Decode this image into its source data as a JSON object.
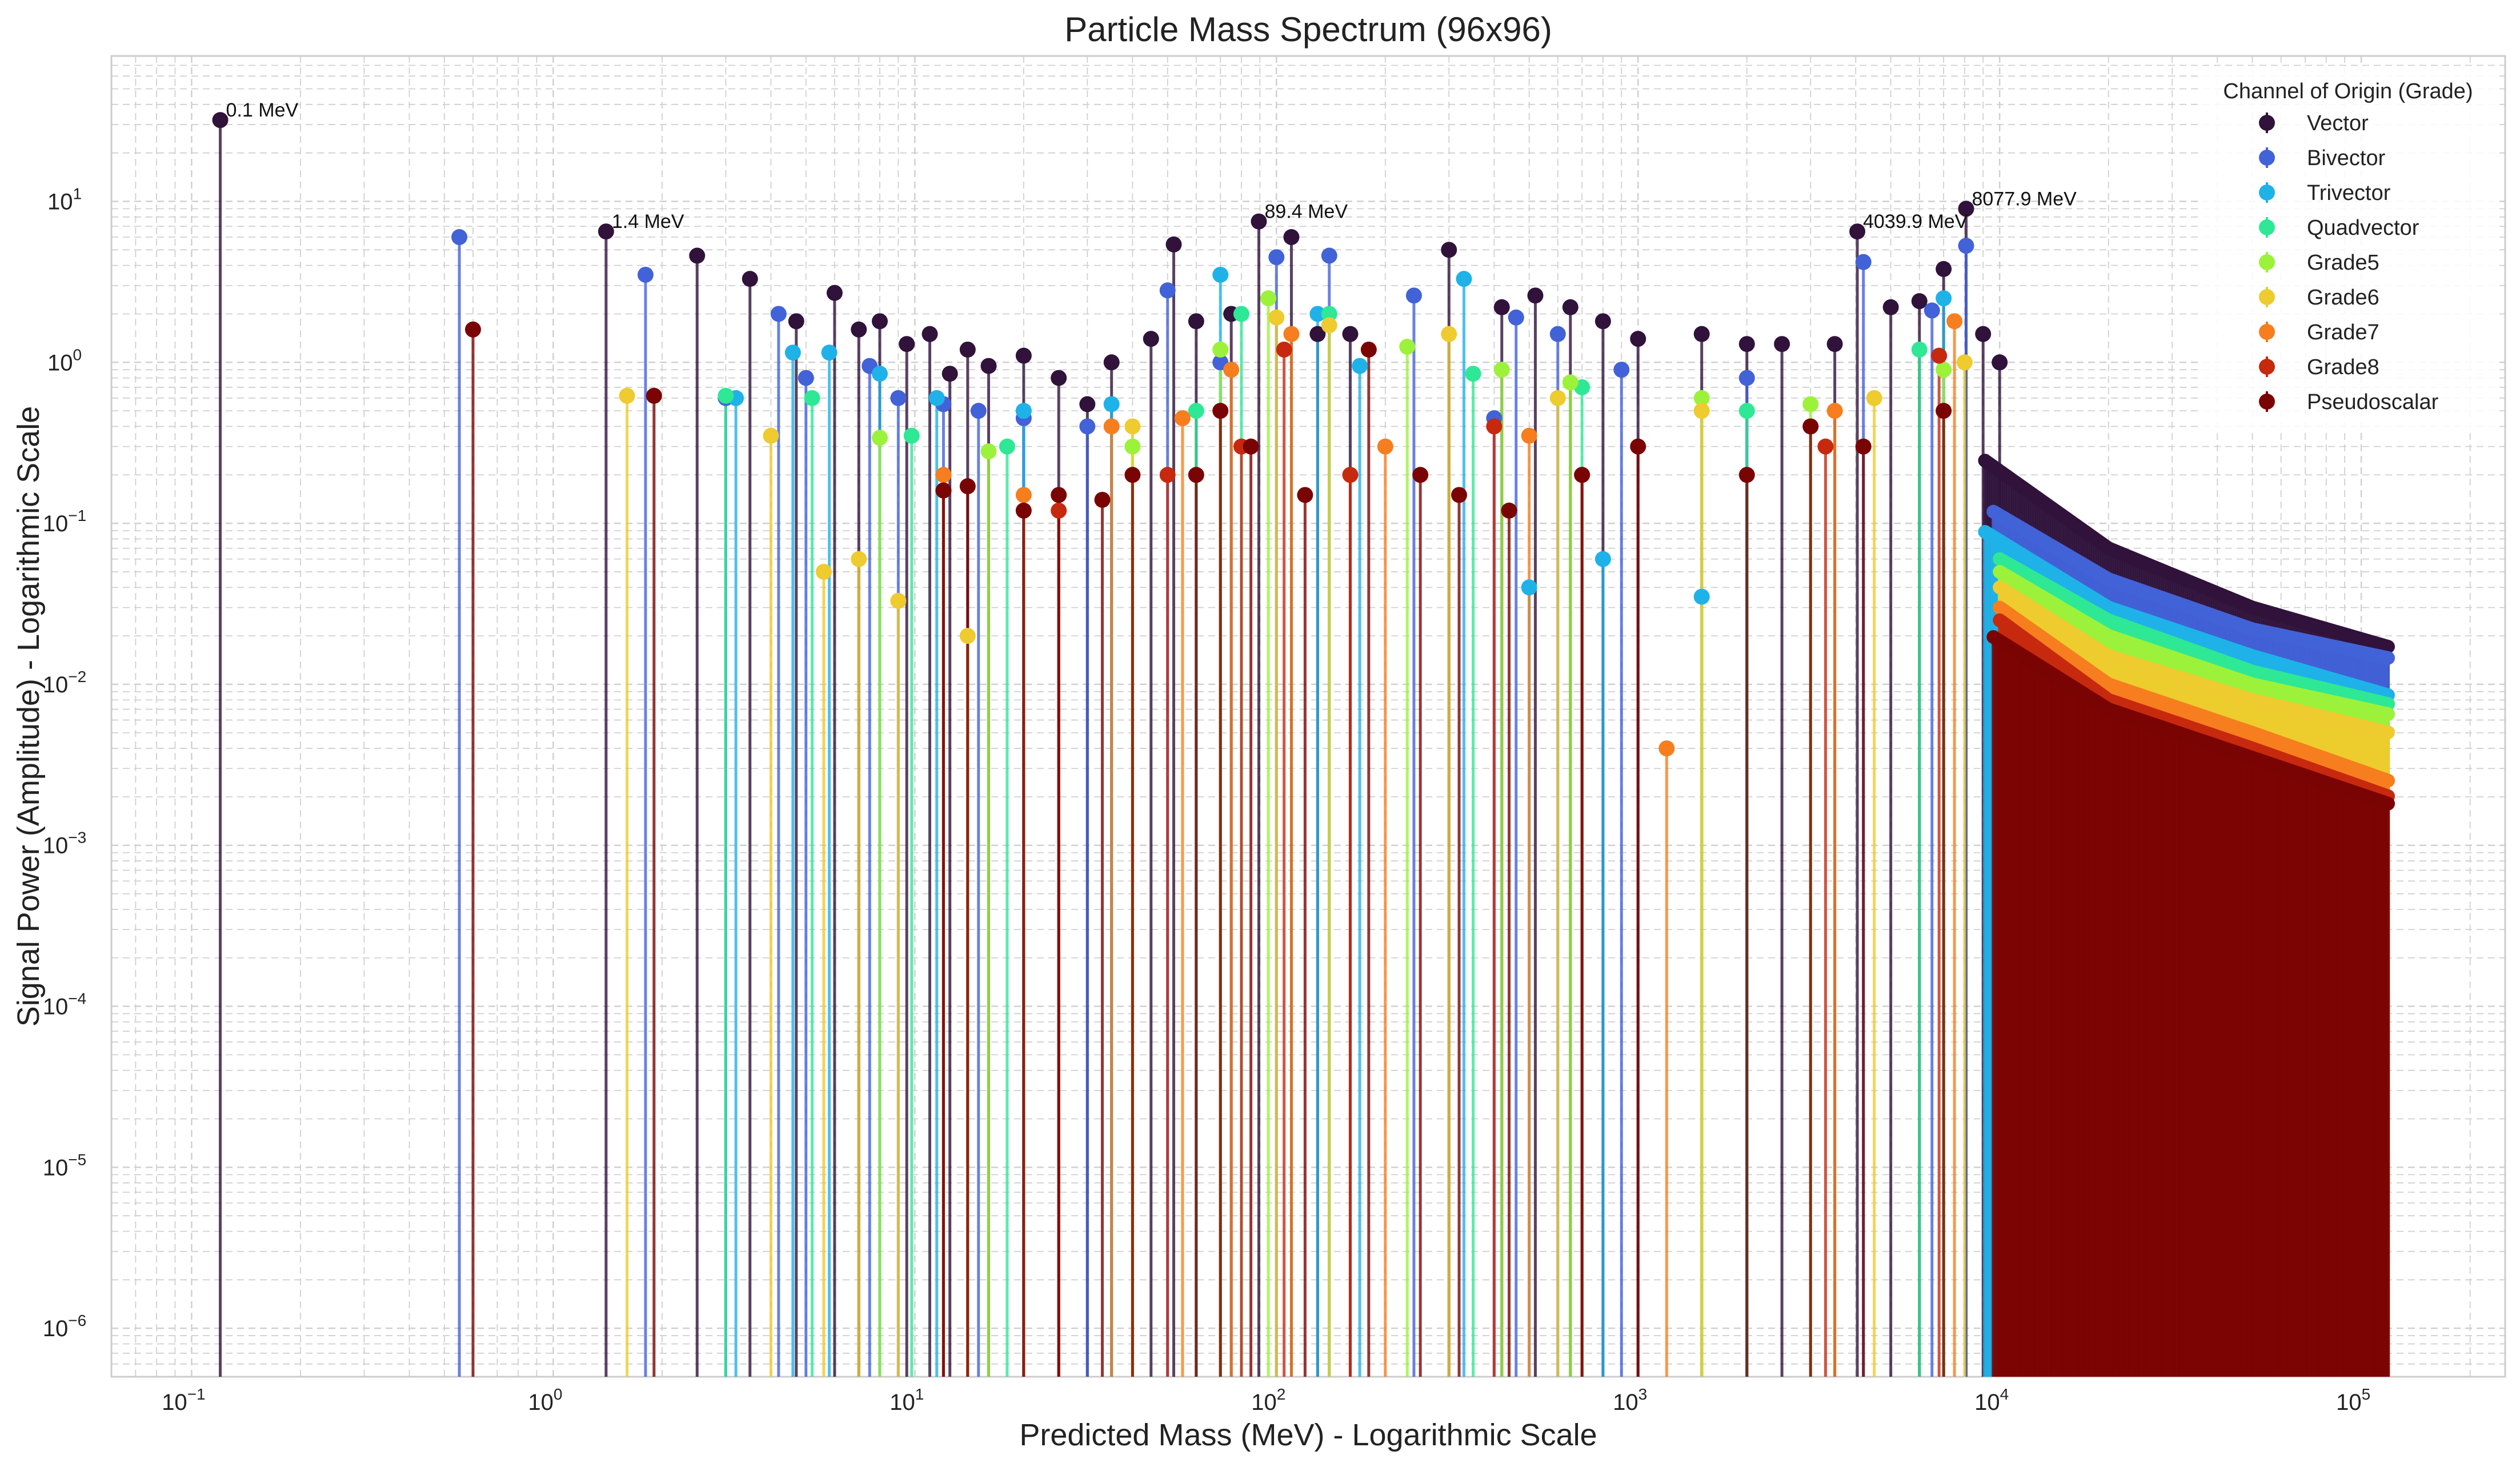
{
  "chart_data": {
    "type": "stem",
    "title": "Particle Mass Spectrum (96x96)",
    "xlabel": "Predicted Mass (MeV) - Logarithmic Scale",
    "ylabel": "Signal Power (Amplitude) - Logarithmic Scale",
    "xscale": "log",
    "yscale": "log",
    "xlim": [
      0.06,
      250000
    ],
    "ylim": [
      5e-07,
      80
    ],
    "grid": true,
    "legend": {
      "title": "Channel of Origin (Grade)",
      "placement": "top-right"
    },
    "x_ticks": [
      {
        "base": "10",
        "exp": "−1",
        "value": 0.1
      },
      {
        "base": "10",
        "exp": "0",
        "value": 1
      },
      {
        "base": "10",
        "exp": "1",
        "value": 10
      },
      {
        "base": "10",
        "exp": "2",
        "value": 100
      },
      {
        "base": "10",
        "exp": "3",
        "value": 1000
      },
      {
        "base": "10",
        "exp": "4",
        "value": 10000
      },
      {
        "base": "10",
        "exp": "5",
        "value": 100000
      }
    ],
    "y_ticks": [
      {
        "base": "10",
        "exp": "−6",
        "value": 1e-06
      },
      {
        "base": "10",
        "exp": "−5",
        "value": 1e-05
      },
      {
        "base": "10",
        "exp": "−4",
        "value": 0.0001
      },
      {
        "base": "10",
        "exp": "−3",
        "value": 0.001
      },
      {
        "base": "10",
        "exp": "−2",
        "value": 0.01
      },
      {
        "base": "10",
        "exp": "−1",
        "value": 0.1
      },
      {
        "base": "10",
        "exp": "0",
        "value": 1
      },
      {
        "base": "10",
        "exp": "1",
        "value": 10
      }
    ],
    "annotations": [
      {
        "text": "0.1 MeV",
        "x": 0.12,
        "y": 32
      },
      {
        "text": "1.4 MeV",
        "x": 1.4,
        "y": 6.5
      },
      {
        "text": "89.4 MeV",
        "x": 89.4,
        "y": 7.5
      },
      {
        "text": "4039.9 MeV",
        "x": 4039.9,
        "y": 6.5
      },
      {
        "text": "8077.9 MeV",
        "x": 8077.9,
        "y": 9
      }
    ],
    "series": [
      {
        "name": "Vector",
        "color": "#30123b",
        "points": [
          [
            0.12,
            32
          ],
          [
            1.4,
            6.5
          ],
          [
            2.5,
            4.6
          ],
          [
            3.5,
            3.3
          ],
          [
            4.7,
            1.8
          ],
          [
            6.0,
            2.7
          ],
          [
            7.0,
            1.6
          ],
          [
            8.0,
            1.8
          ],
          [
            9.5,
            1.3
          ],
          [
            11,
            1.5
          ],
          [
            12.5,
            0.85
          ],
          [
            14,
            1.2
          ],
          [
            16,
            0.95
          ],
          [
            20,
            1.1
          ],
          [
            25,
            0.8
          ],
          [
            30,
            0.55
          ],
          [
            35,
            1.0
          ],
          [
            45,
            1.4
          ],
          [
            52,
            5.4
          ],
          [
            60,
            1.8
          ],
          [
            75,
            2.0
          ],
          [
            89.4,
            7.5
          ],
          [
            110,
            6.0
          ],
          [
            130,
            1.5
          ],
          [
            160,
            1.5
          ],
          [
            300,
            5.0
          ],
          [
            420,
            2.2
          ],
          [
            520,
            2.6
          ],
          [
            650,
            2.2
          ],
          [
            800,
            1.8
          ],
          [
            1000,
            1.4
          ],
          [
            1500,
            1.5
          ],
          [
            2000,
            1.3
          ],
          [
            2500,
            1.3
          ],
          [
            3500,
            1.3
          ],
          [
            4039.9,
            6.5
          ],
          [
            5000,
            2.2
          ],
          [
            6000,
            2.4
          ],
          [
            7000,
            3.8
          ],
          [
            8077.9,
            9.0
          ],
          [
            9000,
            1.5
          ],
          [
            10000,
            1.0
          ]
        ],
        "tail": [
          [
            9000,
            0.25
          ],
          [
            20000,
            0.07
          ],
          [
            50000,
            0.03
          ],
          [
            120000,
            0.017
          ]
        ]
      },
      {
        "name": "Bivector",
        "color": "#4262d8",
        "points": [
          [
            0.55,
            6.0
          ],
          [
            1.8,
            3.5
          ],
          [
            3.0,
            0.6
          ],
          [
            4.2,
            2.0
          ],
          [
            5.0,
            0.8
          ],
          [
            7.5,
            0.95
          ],
          [
            9.0,
            0.6
          ],
          [
            12,
            0.55
          ],
          [
            15,
            0.5
          ],
          [
            20,
            0.45
          ],
          [
            30,
            0.4
          ],
          [
            50,
            2.8
          ],
          [
            70,
            1.0
          ],
          [
            100,
            4.5
          ],
          [
            140,
            4.6
          ],
          [
            240,
            2.6
          ],
          [
            400,
            0.45
          ],
          [
            460,
            1.9
          ],
          [
            600,
            1.5
          ],
          [
            900,
            0.9
          ],
          [
            2000,
            0.8
          ],
          [
            4200,
            4.2
          ],
          [
            6500,
            2.1
          ],
          [
            8077.9,
            5.3
          ]
        ],
        "tail": [
          [
            9500,
            0.12
          ],
          [
            20000,
            0.045
          ],
          [
            50000,
            0.022
          ],
          [
            120000,
            0.0145
          ]
        ]
      },
      {
        "name": "Trivector",
        "color": "#1fb2e8",
        "points": [
          [
            3.2,
            0.6
          ],
          [
            4.6,
            1.15
          ],
          [
            5.8,
            1.15
          ],
          [
            8.0,
            0.85
          ],
          [
            11.5,
            0.6
          ],
          [
            20,
            0.5
          ],
          [
            35,
            0.55
          ],
          [
            70,
            3.5
          ],
          [
            130,
            2.0
          ],
          [
            170,
            0.95
          ],
          [
            330,
            3.3
          ],
          [
            500,
            0.04
          ],
          [
            800,
            0.06
          ],
          [
            1500,
            0.035
          ],
          [
            3000,
            0.4
          ],
          [
            7000,
            2.5
          ]
        ],
        "tail": [
          [
            9000,
            0.09
          ],
          [
            20000,
            0.03
          ],
          [
            50000,
            0.015
          ],
          [
            120000,
            0.0085
          ]
        ]
      },
      {
        "name": "Quadvector",
        "color": "#2ee895",
        "points": [
          [
            3.0,
            0.62
          ],
          [
            5.2,
            0.6
          ],
          [
            9.8,
            0.35
          ],
          [
            18,
            0.3
          ],
          [
            60,
            0.5
          ],
          [
            80,
            2.0
          ],
          [
            140,
            2.0
          ],
          [
            350,
            0.85
          ],
          [
            700,
            0.7
          ],
          [
            2000,
            0.5
          ],
          [
            6000,
            1.2
          ]
        ],
        "tail": [
          [
            10000,
            0.06
          ],
          [
            20000,
            0.025
          ],
          [
            50000,
            0.012
          ],
          [
            120000,
            0.0075
          ]
        ]
      },
      {
        "name": "Grade5",
        "color": "#9cf23a",
        "points": [
          [
            8.0,
            0.34
          ],
          [
            16,
            0.28
          ],
          [
            40,
            0.3
          ],
          [
            70,
            1.2
          ],
          [
            95,
            2.5
          ],
          [
            230,
            1.25
          ],
          [
            420,
            0.9
          ],
          [
            650,
            0.75
          ],
          [
            1500,
            0.6
          ],
          [
            3000,
            0.55
          ],
          [
            7000,
            0.9
          ]
        ],
        "tail": [
          [
            10000,
            0.05
          ],
          [
            20000,
            0.02
          ],
          [
            50000,
            0.01
          ],
          [
            120000,
            0.0065
          ]
        ]
      },
      {
        "name": "Grade6",
        "color": "#eecb2e",
        "points": [
          [
            1.6,
            0.62
          ],
          [
            4.0,
            0.35
          ],
          [
            5.6,
            0.05
          ],
          [
            7.0,
            0.06
          ],
          [
            9.0,
            0.033
          ],
          [
            14,
            0.02
          ],
          [
            40,
            0.4
          ],
          [
            100,
            1.9
          ],
          [
            140,
            1.7
          ],
          [
            300,
            1.5
          ],
          [
            600,
            0.6
          ],
          [
            1500,
            0.5
          ],
          [
            4500,
            0.6
          ],
          [
            8000,
            1.0
          ]
        ],
        "tail": [
          [
            10000,
            0.04
          ],
          [
            20000,
            0.015
          ],
          [
            50000,
            0.008
          ],
          [
            120000,
            0.005
          ]
        ]
      },
      {
        "name": "Grade7",
        "color": "#f67e1e",
        "points": [
          [
            12,
            0.2
          ],
          [
            20,
            0.15
          ],
          [
            35,
            0.4
          ],
          [
            55,
            0.45
          ],
          [
            75,
            0.9
          ],
          [
            110,
            1.5
          ],
          [
            200,
            0.3
          ],
          [
            500,
            0.35
          ],
          [
            1200,
            0.004
          ],
          [
            3500,
            0.5
          ],
          [
            7500,
            1.8
          ]
        ],
        "tail": [
          [
            10000,
            0.03
          ],
          [
            20000,
            0.01
          ],
          [
            50000,
            0.005
          ],
          [
            120000,
            0.0025
          ]
        ]
      },
      {
        "name": "Grade8",
        "color": "#c7290f",
        "points": [
          [
            12,
            0.16
          ],
          [
            25,
            0.12
          ],
          [
            50,
            0.2
          ],
          [
            80,
            0.3
          ],
          [
            105,
            1.2
          ],
          [
            160,
            0.2
          ],
          [
            400,
            0.4
          ],
          [
            700,
            0.2
          ],
          [
            3300,
            0.3
          ],
          [
            6800,
            1.1
          ]
        ],
        "tail": [
          [
            10000,
            0.025
          ],
          [
            20000,
            0.008
          ],
          [
            50000,
            0.004
          ],
          [
            120000,
            0.002
          ]
        ]
      },
      {
        "name": "Pseudoscalar",
        "color": "#7a0403",
        "points": [
          [
            0.6,
            1.6
          ],
          [
            1.9,
            0.62
          ],
          [
            12,
            0.16
          ],
          [
            14,
            0.17
          ],
          [
            20,
            0.12
          ],
          [
            25,
            0.15
          ],
          [
            33,
            0.14
          ],
          [
            40,
            0.2
          ],
          [
            60,
            0.2
          ],
          [
            70,
            0.5
          ],
          [
            85,
            0.3
          ],
          [
            120,
            0.15
          ],
          [
            180,
            1.2
          ],
          [
            250,
            0.2
          ],
          [
            320,
            0.15
          ],
          [
            440,
            0.12
          ],
          [
            700,
            0.2
          ],
          [
            1000,
            0.3
          ],
          [
            2000,
            0.2
          ],
          [
            3000,
            0.4
          ],
          [
            4200,
            0.3
          ],
          [
            7000,
            0.5
          ]
        ],
        "tail": [
          [
            9500,
            0.02
          ],
          [
            20000,
            0.007
          ],
          [
            50000,
            0.0035
          ],
          [
            120000,
            0.0018
          ]
        ]
      }
    ]
  }
}
